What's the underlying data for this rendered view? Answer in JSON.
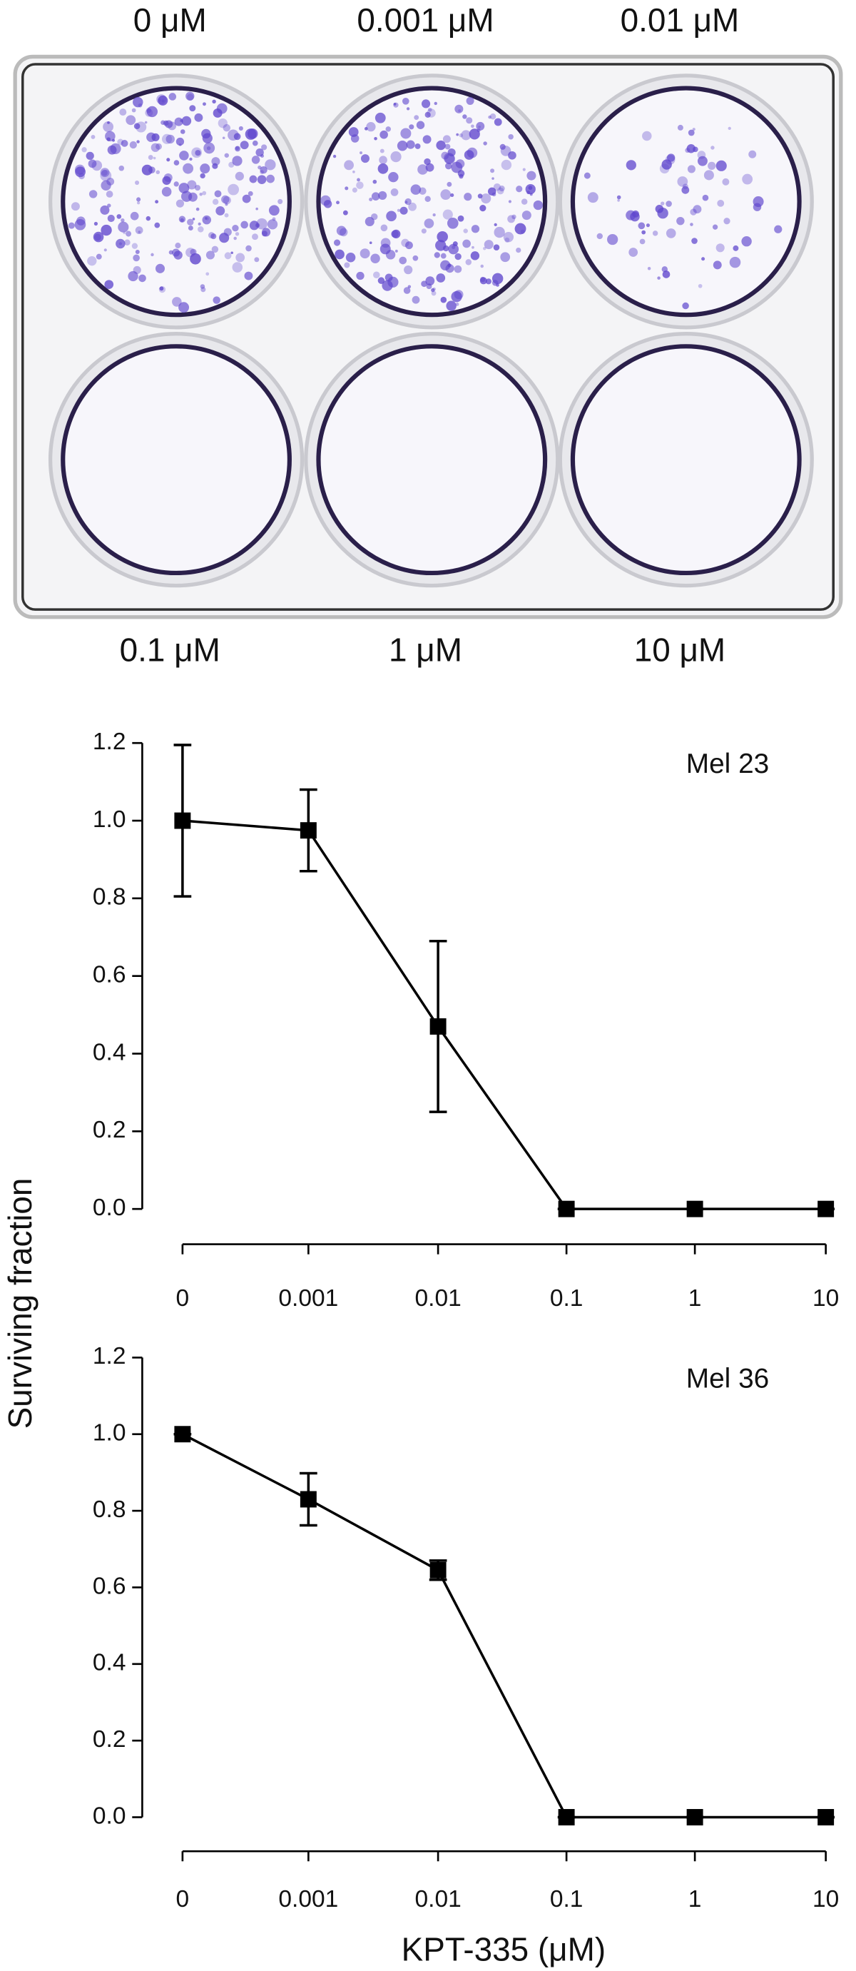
{
  "plate": {
    "top_labels": [
      "0 μM",
      "0.001 μM",
      "0.01 μM"
    ],
    "bottom_labels": [
      "0.1 μM",
      "1 μM",
      "10 μM"
    ]
  },
  "axis_labels": {
    "y": "Surviving fraction",
    "x": "KPT-335 (μM)"
  },
  "chart_data": [
    {
      "type": "line",
      "title": "Mel 23",
      "categories": [
        "0",
        "0.001",
        "0.01",
        "0.1",
        "1",
        "10"
      ],
      "values": [
        1.0,
        0.975,
        0.47,
        0,
        0,
        0
      ],
      "errors": [
        0.195,
        0.105,
        0.22,
        0,
        0,
        0
      ],
      "color": "#000000",
      "ylim": [
        0,
        1.2
      ],
      "yticks": [
        {
          "value": 0,
          "label": "0.0"
        },
        0.2,
        0.4,
        0.6,
        0.8,
        {
          "value": 1,
          "label": "1.0"
        },
        1.2
      ]
    },
    {
      "type": "line",
      "title": "Mel 36",
      "categories": [
        "0",
        "0.001",
        "0.01",
        "0.1",
        "1",
        "10"
      ],
      "values": [
        1.0,
        0.83,
        0.645,
        0,
        0,
        0
      ],
      "errors": [
        0,
        0.068,
        0.025,
        0,
        0,
        0
      ],
      "color": "#000000",
      "ylim": [
        0,
        1.2
      ],
      "yticks": [
        {
          "value": 0,
          "label": "0.0"
        },
        0.2,
        0.4,
        0.6,
        0.8,
        {
          "value": 1,
          "label": "1.0"
        },
        1.2
      ]
    }
  ]
}
